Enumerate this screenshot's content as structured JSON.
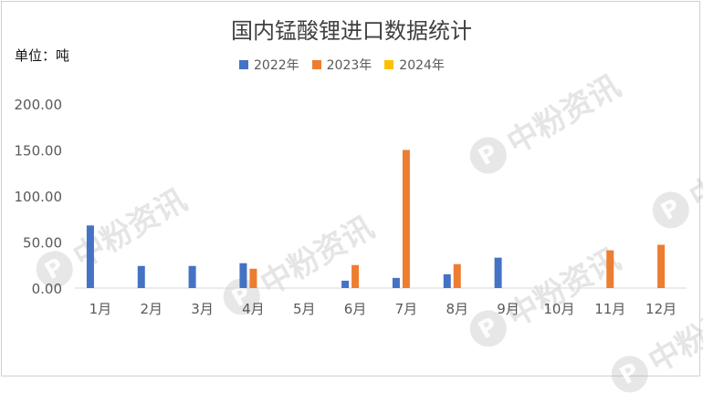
{
  "title": "国内锰酸锂进口数据统计",
  "unit_label": "单位：吨",
  "watermark": {
    "text": "中粉资讯",
    "logo": "P"
  },
  "colors": {
    "2022年": "#4472c4",
    "2023年": "#ed7d31",
    "2024年": "#ffc000"
  },
  "chart_data": {
    "type": "bar",
    "title": "国内锰酸锂进口数据统计",
    "ylabel": "单位：吨",
    "categories": [
      "1月",
      "2月",
      "3月",
      "4月",
      "5月",
      "6月",
      "7月",
      "8月",
      "9月",
      "10月",
      "11月",
      "12月"
    ],
    "series": [
      {
        "name": "2022年",
        "values": [
          68,
          24,
          24,
          27,
          0,
          8,
          11,
          15,
          33,
          0,
          0,
          0
        ]
      },
      {
        "name": "2023年",
        "values": [
          0,
          0,
          0,
          21,
          0,
          25,
          150,
          26,
          0,
          0,
          41,
          47
        ]
      },
      {
        "name": "2024年",
        "values": [
          0,
          0,
          0,
          0,
          0,
          0,
          0,
          0,
          0,
          0,
          0,
          0
        ]
      }
    ],
    "ylim": [
      0,
      200
    ],
    "yticks": [
      "0.00",
      "50.00",
      "100.00",
      "150.00",
      "200.00"
    ],
    "grid": false,
    "legend": "top"
  }
}
